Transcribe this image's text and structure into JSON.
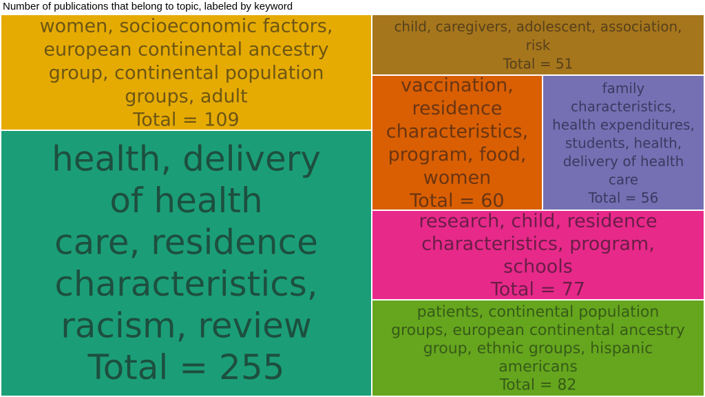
{
  "title": "Number of publications that belong to topic, labeled by keyword",
  "chart_data": {
    "type": "treemap",
    "title": "Number of publications that belong to topic, labeled by keyword",
    "total_prefix": "Total = ",
    "items": [
      {
        "lines": [
          "health, delivery",
          "of health",
          "care, residence",
          "characteristics,",
          "racism, review"
        ],
        "value": 255,
        "color": "#1b9e77",
        "text_color": "#1d4f3f"
      },
      {
        "lines": [
          "women, socioeconomic factors,",
          "european continental ancestry",
          "group, continental population",
          "groups, adult"
        ],
        "value": 109,
        "color": "#e6ab02",
        "text_color": "#6d5614"
      },
      {
        "lines": [
          "patients, continental population",
          "groups, european continental ancestry",
          "group, ethnic groups, hispanic",
          "americans"
        ],
        "value": 82,
        "color": "#66a61e",
        "text_color": "#365b18"
      },
      {
        "lines": [
          "research, child, residence",
          "characteristics, program,",
          "schools"
        ],
        "value": 77,
        "color": "#e7298a",
        "text_color": "#6b1d47"
      },
      {
        "lines": [
          "vaccination,",
          "residence",
          "characteristics,",
          "program, food,",
          "women"
        ],
        "value": 60,
        "color": "#d95f02",
        "text_color": "#6b3512"
      },
      {
        "lines": [
          "family",
          "characteristics,",
          "health expenditures,",
          "students, health,",
          "delivery of health",
          "care"
        ],
        "value": 56,
        "color": "#7570b3",
        "text_color": "#3b3960"
      },
      {
        "lines": [
          "child, caregivers, adolescent, association,",
          "risk"
        ],
        "value": 51,
        "color": "#a6761d",
        "text_color": "#56401a"
      }
    ]
  }
}
